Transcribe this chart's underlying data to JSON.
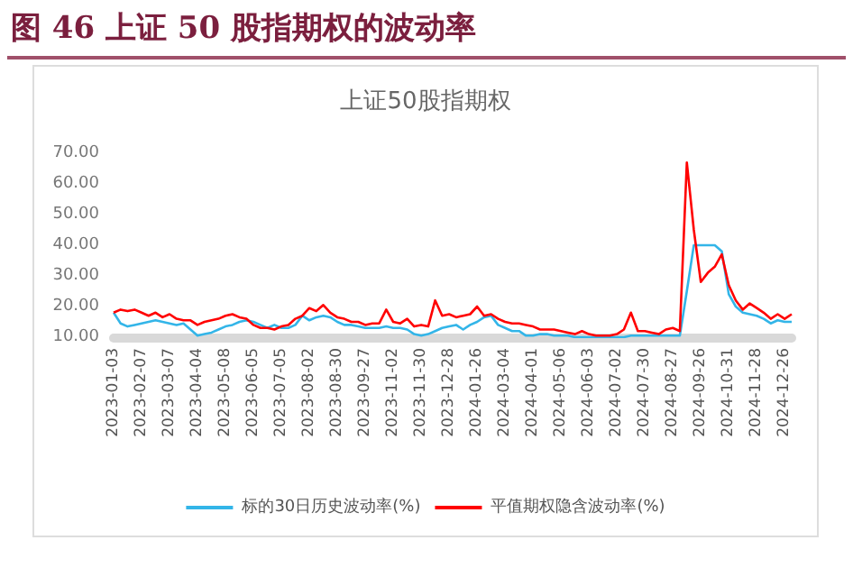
{
  "chart_data": {
    "type": "line",
    "title": "图 46 上证 50 股指期权的波动率",
    "subtitle": "上证50股指期权",
    "categories": [
      "2023-01-03",
      null,
      null,
      null,
      "2023-02-07",
      null,
      null,
      null,
      "2023-03-07",
      null,
      null,
      null,
      "2023-04-04",
      null,
      null,
      null,
      "2023-05-08",
      null,
      null,
      null,
      "2023-06-05",
      null,
      null,
      null,
      "2023-07-05",
      null,
      null,
      null,
      "2023-08-02",
      null,
      null,
      null,
      "2023-08-30",
      null,
      null,
      null,
      "2023-09-27",
      null,
      null,
      null,
      "2023-11-02",
      null,
      null,
      null,
      "2023-11-30",
      null,
      null,
      null,
      "2023-12-28",
      null,
      null,
      null,
      "2024-01-26",
      null,
      null,
      null,
      "2024-03-04",
      null,
      null,
      null,
      "2024-04-01",
      null,
      null,
      null,
      "2024-05-06",
      null,
      null,
      null,
      "2024-06-03",
      null,
      null,
      null,
      "2024-07-02",
      null,
      null,
      null,
      "2024-07-30",
      null,
      null,
      null,
      "2024-08-27",
      null,
      null,
      null,
      "2024-09-26",
      null,
      null,
      null,
      "2024-10-31",
      null,
      null,
      null,
      "2024-11-28",
      null,
      null,
      null,
      "2024-12-26",
      null
    ],
    "series": [
      {
        "name": "标的30日历史波动率(%)",
        "color": "#33b5e8",
        "values": [
          18,
          14.5,
          13.5,
          14,
          14.5,
          15,
          15.5,
          15,
          14.5,
          14,
          14.5,
          12.5,
          10.5,
          11,
          11.5,
          12.5,
          13.5,
          14,
          15,
          15.5,
          15,
          14,
          13,
          14,
          13,
          13,
          14,
          17,
          15.5,
          16.5,
          17,
          16.5,
          15,
          14,
          14,
          13.5,
          13,
          13,
          13,
          13.5,
          13,
          13,
          12.5,
          11,
          10.5,
          11,
          12,
          13,
          13.5,
          14,
          12.5,
          14,
          15,
          16.5,
          17,
          14,
          13,
          12,
          12,
          10.5,
          10.5,
          11,
          11,
          10.5,
          10.5,
          10.5,
          10,
          10,
          10,
          10,
          10,
          10,
          10,
          10,
          10.5,
          10.5,
          10.5,
          10.5,
          10.5,
          10.5,
          10.5,
          10.5,
          25,
          40,
          40,
          40,
          40,
          38,
          24,
          20,
          18,
          17.5,
          17,
          16,
          14.5,
          15.5,
          15,
          15
        ]
      },
      {
        "name": "平值期权隐含波动率(%)",
        "color": "#ff0000",
        "values": [
          18,
          19,
          18.5,
          19,
          18,
          17,
          18,
          16.5,
          17.5,
          16,
          15.5,
          15.5,
          14,
          15,
          15.5,
          16,
          17,
          17.5,
          16.5,
          16,
          14,
          13,
          13,
          12.5,
          13.5,
          14,
          16,
          17,
          19.5,
          18.5,
          20.5,
          18,
          16.5,
          16,
          15,
          15,
          14,
          14.5,
          14.5,
          19,
          15,
          14.5,
          16,
          13.5,
          14,
          13.5,
          22,
          17,
          17.5,
          16.5,
          17,
          17.5,
          20,
          17,
          17.5,
          16,
          15,
          14.5,
          14.5,
          14,
          13.5,
          12.5,
          12.5,
          12.5,
          12,
          11.5,
          11,
          12,
          11,
          10.5,
          10.5,
          10.5,
          11,
          12.5,
          18,
          12,
          12,
          11.5,
          11,
          12.5,
          13,
          12,
          67,
          45,
          28,
          31,
          33,
          37,
          27,
          22,
          19,
          21,
          19.5,
          18,
          16,
          17.5,
          16,
          17.5
        ]
      }
    ],
    "ylim": [
      10,
      70
    ],
    "yticks": [
      {
        "value": 10,
        "label": "10.00"
      },
      {
        "value": 20,
        "label": "20.00"
      },
      {
        "value": 30,
        "label": "30.00"
      },
      {
        "value": 40,
        "label": "40.00"
      },
      {
        "value": 50,
        "label": "50.00"
      },
      {
        "value": 60,
        "label": "60.00"
      },
      {
        "value": 70,
        "label": "70.00"
      }
    ],
    "legend": "bottom",
    "grid": false,
    "marker": "none",
    "line_style": "solid"
  }
}
